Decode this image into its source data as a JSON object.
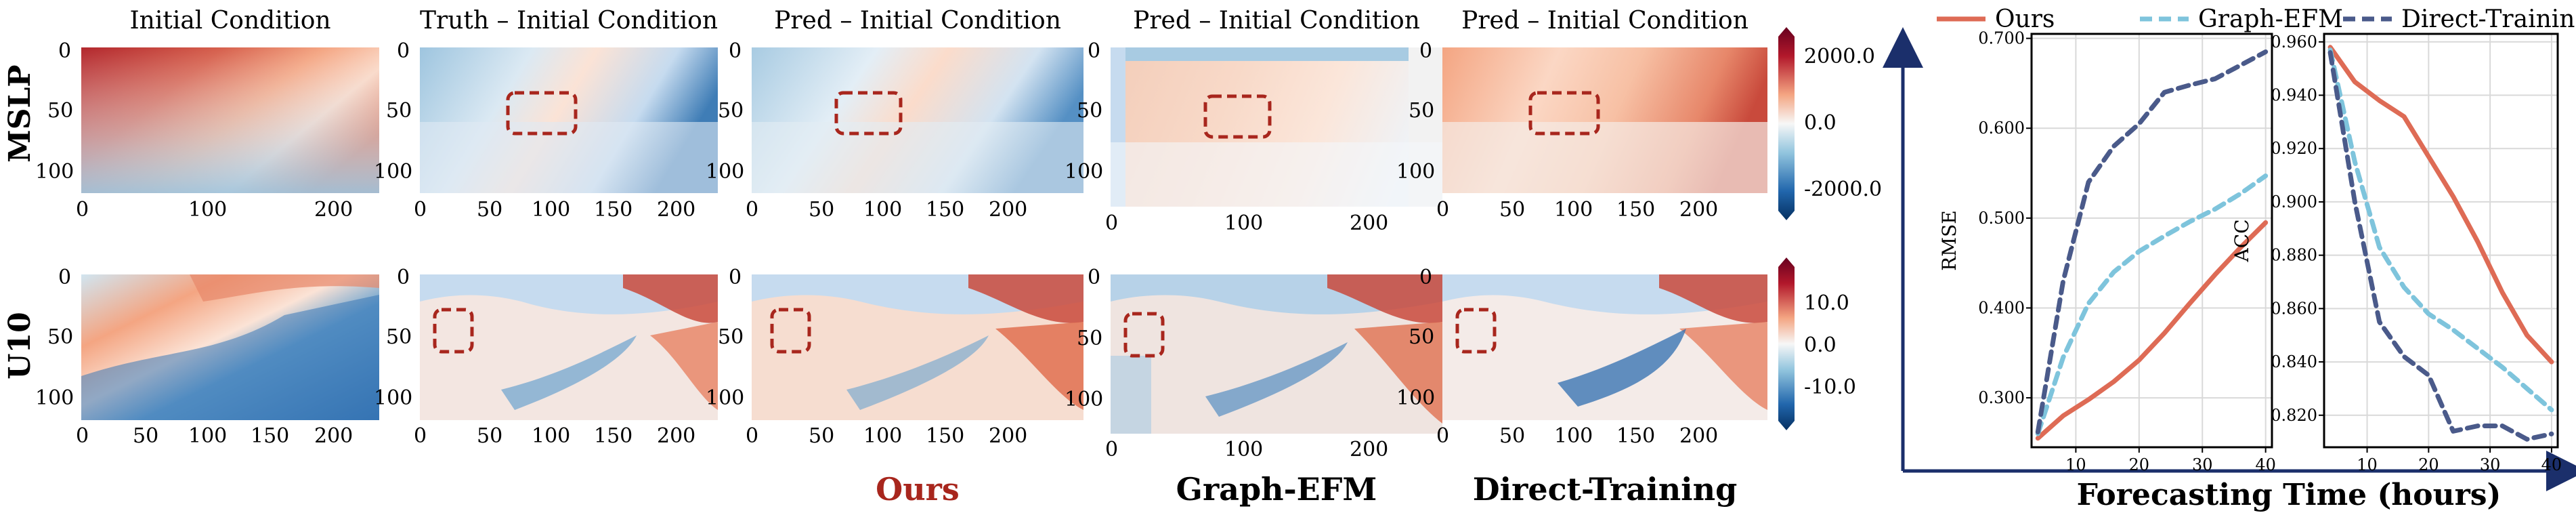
{
  "heatmaps": {
    "columns": [
      {
        "title": "Initial Condition",
        "method": ""
      },
      {
        "title": "Truth – Initial Condition",
        "method": ""
      },
      {
        "title": "Pred – Initial Condition",
        "method": "Ours"
      },
      {
        "title": "Pred – Initial Condition",
        "method": "Graph-EFM"
      },
      {
        "title": "Pred – Initial Condition",
        "method": "Direct-Training"
      }
    ],
    "rows": [
      "MSLP",
      "U10"
    ],
    "y_ticks": [
      "0",
      "50",
      "100"
    ],
    "x_ticks_a": [
      "0",
      "100",
      "200"
    ],
    "x_ticks_b": [
      "0",
      "50",
      "100",
      "150",
      "200"
    ],
    "colorbar_mslp": [
      "2000.0",
      "0.0",
      "-2000.0"
    ],
    "colorbar_u10": [
      "10.0",
      "0.0",
      "-10.0"
    ]
  },
  "chart_data": [
    {
      "type": "line",
      "title": "",
      "xlabel": "",
      "ylabel": "RMSE",
      "xlim": [
        3,
        41
      ],
      "ylim": [
        0.245,
        0.705
      ],
      "x_ticks": [
        10,
        20,
        30,
        40
      ],
      "y_ticks": [
        0.3,
        0.4,
        0.5,
        0.6,
        0.7
      ],
      "grid": true,
      "series": [
        {
          "name": "Ours",
          "x": [
            4,
            8,
            12,
            16,
            20,
            24,
            28,
            32,
            36,
            40
          ],
          "values": [
            0.255,
            0.28,
            0.298,
            0.318,
            0.342,
            0.372,
            0.405,
            0.437,
            0.467,
            0.495
          ]
        },
        {
          "name": "Graph-EFM",
          "x": [
            4,
            8,
            12,
            16,
            20,
            24,
            28,
            32,
            36,
            40
          ],
          "values": [
            0.26,
            0.345,
            0.405,
            0.44,
            0.463,
            0.48,
            0.496,
            0.51,
            0.527,
            0.547
          ]
        },
        {
          "name": "Direct-Training",
          "x": [
            4,
            8,
            12,
            16,
            20,
            24,
            28,
            32,
            36,
            40
          ],
          "values": [
            0.262,
            0.43,
            0.54,
            0.58,
            0.605,
            0.64,
            0.648,
            0.655,
            0.67,
            0.685
          ]
        }
      ]
    },
    {
      "type": "line",
      "title": "",
      "xlabel": "",
      "ylabel": "ACC",
      "xlim": [
        3,
        41
      ],
      "ylim": [
        0.808,
        0.963
      ],
      "x_ticks": [
        10,
        20,
        30,
        40
      ],
      "y_ticks": [
        0.82,
        0.84,
        0.86,
        0.88,
        0.9,
        0.92,
        0.94,
        0.96
      ],
      "grid": true,
      "series": [
        {
          "name": "Ours",
          "x": [
            4,
            8,
            12,
            16,
            20,
            24,
            28,
            32,
            36,
            40
          ],
          "values": [
            0.958,
            0.945,
            0.938,
            0.932,
            0.917,
            0.902,
            0.885,
            0.866,
            0.85,
            0.84
          ]
        },
        {
          "name": "Graph-EFM",
          "x": [
            4,
            8,
            12,
            16,
            20,
            24,
            28,
            32,
            36,
            40
          ],
          "values": [
            0.957,
            0.915,
            0.883,
            0.868,
            0.858,
            0.852,
            0.845,
            0.838,
            0.83,
            0.822
          ]
        },
        {
          "name": "Direct-Training",
          "x": [
            4,
            8,
            12,
            16,
            20,
            24,
            28,
            32,
            36,
            40
          ],
          "values": [
            0.956,
            0.9,
            0.855,
            0.842,
            0.835,
            0.814,
            0.816,
            0.816,
            0.811,
            0.813
          ]
        }
      ]
    }
  ],
  "legend": [
    "Ours",
    "Graph-EFM",
    "Direct-Training"
  ],
  "shared_xlabel": "Forecasting Time (hours)",
  "colors": {
    "ours": "#de6b55",
    "graph_efm": "#7ec4dc",
    "direct": "#4a5a8a",
    "box": "#a8261d",
    "axis_arrow": "#1b2f6b"
  }
}
